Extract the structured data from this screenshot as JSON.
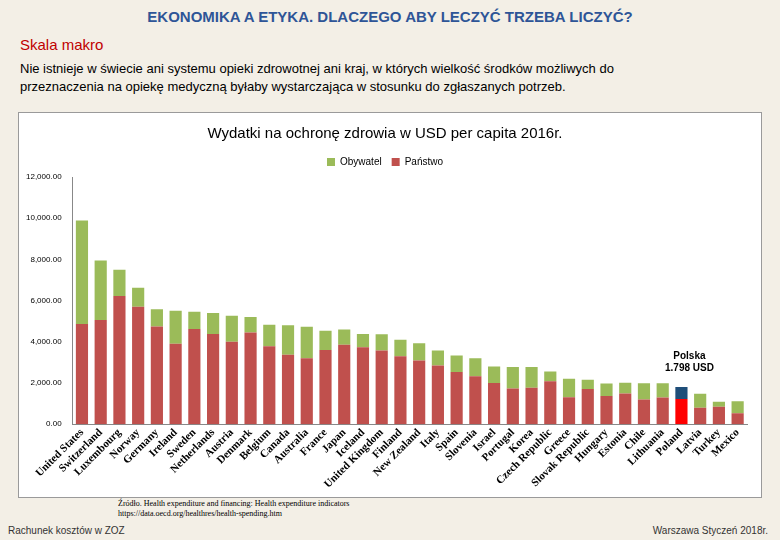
{
  "header": {
    "title": "EKONOMIKA A ETYKA. DLACZEGO ABY LECZYĆ TRZEBA LICZYĆ?",
    "section": "Skala makro",
    "text": [
      "Nie istnieje w świecie ani systemu opieki zdrowotnej ani kraj, w których wielkość środków możliwych do",
      "przeznaczenia na opiekę medyczną byłaby wystarczająca w stosunku do zgłaszanych potrzeb."
    ]
  },
  "chart_data": {
    "type": "bar",
    "stacked": true,
    "title": "Wydatki na ochronę zdrowia w USD per capita 2016r.",
    "categories": [
      "United States",
      "Switzerland",
      "Luxembourg",
      "Norway",
      "Germany",
      "Ireland",
      "Sweden",
      "Netherlands",
      "Austria",
      "Denmark",
      "Belgium",
      "Canada",
      "Australia",
      "France",
      "Japan",
      "Iceland",
      "United Kingdom",
      "Finland",
      "New Zealand",
      "Italy",
      "Spain",
      "Slovenia",
      "Israel",
      "Portugal",
      "Korea",
      "Czech Republic",
      "Greece",
      "Slovak Republic",
      "Hungary",
      "Estonia",
      "Chile",
      "Lithuania",
      "Poland",
      "Latvia",
      "Turkey",
      "Mexico"
    ],
    "series": [
      {
        "name": "Obywatel",
        "color": "#9bbb59",
        "colors": [
          "#9bbb59",
          "#9bbb59",
          "#9bbb59",
          "#9bbb59",
          "#9bbb59",
          "#9bbb59",
          "#9bbb59",
          "#9bbb59",
          "#9bbb59",
          "#9bbb59",
          "#9bbb59",
          "#9bbb59",
          "#9bbb59",
          "#9bbb59",
          "#9bbb59",
          "#9bbb59",
          "#9bbb59",
          "#9bbb59",
          "#9bbb59",
          "#9bbb59",
          "#9bbb59",
          "#9bbb59",
          "#9bbb59",
          "#9bbb59",
          "#9bbb59",
          "#9bbb59",
          "#9bbb59",
          "#9bbb59",
          "#9bbb59",
          "#9bbb59",
          "#9bbb59",
          "#9bbb59",
          "#1f4e79",
          "#9bbb59",
          "#9bbb59",
          "#9bbb59"
        ],
        "values": [
          5030,
          2880,
          1280,
          920,
          840,
          1600,
          840,
          1020,
          1260,
          750,
          1040,
          1430,
          1530,
          940,
          750,
          650,
          800,
          810,
          840,
          720,
          800,
          870,
          800,
          1040,
          1000,
          470,
          900,
          450,
          600,
          520,
          800,
          690,
          578,
          680,
          250,
          580
        ]
      },
      {
        "name": "Państwo",
        "color": "#c0504d",
        "colors": [
          "#c0504d",
          "#c0504d",
          "#c0504d",
          "#c0504d",
          "#c0504d",
          "#c0504d",
          "#c0504d",
          "#c0504d",
          "#c0504d",
          "#c0504d",
          "#c0504d",
          "#c0504d",
          "#c0504d",
          "#c0504d",
          "#c0504d",
          "#c0504d",
          "#c0504d",
          "#c0504d",
          "#c0504d",
          "#c0504d",
          "#c0504d",
          "#c0504d",
          "#c0504d",
          "#c0504d",
          "#c0504d",
          "#c0504d",
          "#c0504d",
          "#c0504d",
          "#c0504d",
          "#c0504d",
          "#c0504d",
          "#c0504d",
          "#ff0000",
          "#c0504d",
          "#c0504d",
          "#c0504d"
        ],
        "values": [
          4860,
          5060,
          6220,
          5700,
          4740,
          3900,
          4620,
          4380,
          4000,
          4450,
          3780,
          3370,
          3200,
          3600,
          3850,
          3730,
          3570,
          3290,
          3090,
          2850,
          2530,
          2330,
          2000,
          1730,
          1770,
          2080,
          1300,
          1700,
          1370,
          1490,
          1190,
          1290,
          1220,
          790,
          840,
          530
        ]
      }
    ],
    "ylim": [
      0,
      12000
    ],
    "yticks": [
      {
        "value": 0,
        "label": "0.00"
      },
      {
        "value": 2000,
        "label": "2,000.00"
      },
      {
        "value": 4000,
        "label": "4,000.00"
      },
      {
        "value": 6000,
        "label": "6,000.00"
      },
      {
        "value": 8000,
        "label": "8,000.00"
      },
      {
        "value": 10000,
        "label": "10,000.00"
      },
      {
        "value": 12000,
        "label": "12,000.00"
      }
    ],
    "grid": false,
    "legend": "top",
    "annotations": [
      {
        "category": "Poland",
        "text": [
          "Polska",
          "1.798 USD"
        ]
      }
    ]
  },
  "footer": {
    "source": [
      "Źródło. Health expenditure and financing: Health expenditure indicators",
      "https://data.oecd.org/healthres/health-spending.htm"
    ],
    "left": "Rachunek kosztów w ZOZ",
    "right": "Warszawa Styczeń 2018r."
  }
}
